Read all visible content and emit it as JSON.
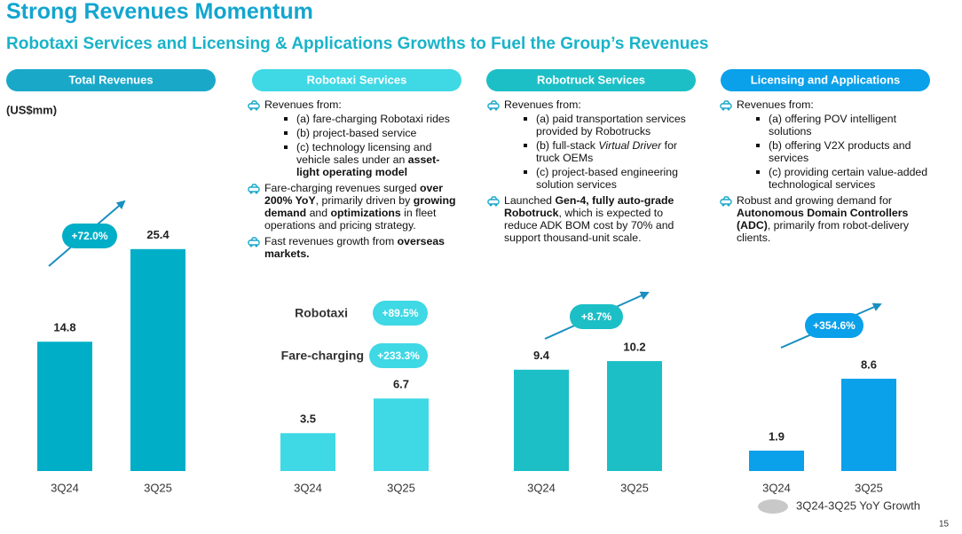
{
  "title": "Strong Revenues Momentum",
  "subtitle": "Robotaxi Services and Licensing & Applications Growths to Fuel the Group’s Revenues",
  "chart_data": [
    {
      "type": "bar",
      "title": "Total Revenues",
      "header_color": "#1aa8c9",
      "unit": "(US$mm)",
      "categories": [
        "3Q24",
        "3Q25"
      ],
      "values": [
        14.8,
        25.4
      ],
      "color": "#00aec7",
      "annotations": [
        {
          "text": "+72.0%"
        }
      ]
    },
    {
      "type": "bar",
      "title": "Robotaxi Services",
      "header_color": "#3fd8e5",
      "categories": [
        "3Q24",
        "3Q25"
      ],
      "values": [
        3.5,
        6.7
      ],
      "color": "#3fd8e5",
      "annotations": [
        {
          "label": "Robotaxi",
          "text": "+89.5%"
        },
        {
          "label": "Fare-charging",
          "text": "+233.3%"
        }
      ]
    },
    {
      "type": "bar",
      "title": "Robotruck Services",
      "header_color": "#1cbfc6",
      "categories": [
        "3Q24",
        "3Q25"
      ],
      "values": [
        9.4,
        10.2
      ],
      "color": "#1cbfc6",
      "annotations": [
        {
          "text": "+8.7%"
        }
      ]
    },
    {
      "type": "bar",
      "title": "Licensing and Applications",
      "header_color": "#0aa0ea",
      "categories": [
        "3Q24",
        "3Q25"
      ],
      "values": [
        1.9,
        8.6
      ],
      "color": "#0aa0ea",
      "annotations": [
        {
          "text": "+354.6%"
        }
      ]
    }
  ],
  "panels": [
    {
      "points": [
        {
          "runs": [
            {
              "text": "Revenues from:"
            }
          ],
          "sub": [
            {
              "runs": [
                {
                  "text": "(a) fare-charging Robotaxi rides"
                }
              ]
            },
            {
              "runs": [
                {
                  "text": "(b) project-based service"
                }
              ]
            },
            {
              "runs": [
                {
                  "text": "(c) technology licensing and vehicle sales under an "
                },
                {
                  "text": "asset-light operating model",
                  "style": "bold"
                }
              ]
            }
          ]
        },
        {
          "runs": [
            {
              "text": "Fare-charging revenues surged "
            },
            {
              "text": "over 200% YoY",
              "style": "bold"
            },
            {
              "text": ", primarily driven by "
            },
            {
              "text": "growing demand",
              "style": "bold"
            },
            {
              "text": " and "
            },
            {
              "text": "optimizations",
              "style": "bold"
            },
            {
              "text": " in fleet operations and pricing strategy."
            }
          ]
        },
        {
          "runs": [
            {
              "text": "Fast revenues growth from "
            },
            {
              "text": "overseas markets.",
              "style": "bold"
            }
          ]
        }
      ]
    },
    {
      "points": [
        {
          "runs": [
            {
              "text": "Revenues from:"
            }
          ],
          "sub": [
            {
              "runs": [
                {
                  "text": "(a) paid transportation services provided by Robotrucks"
                }
              ]
            },
            {
              "runs": [
                {
                  "text": "(b) full-stack "
                },
                {
                  "text": "Virtual Driver",
                  "style": "italic"
                },
                {
                  "text": " for truck OEMs"
                }
              ]
            },
            {
              "runs": [
                {
                  "text": "(c) project-based engineering solution services"
                }
              ]
            }
          ]
        },
        {
          "runs": [
            {
              "text": "Launched "
            },
            {
              "text": "Gen-4, fully auto-grade Robotruck",
              "style": "bold"
            },
            {
              "text": ", which is expected to reduce ADK BOM cost by 70% and support thousand-unit scale."
            }
          ]
        }
      ]
    },
    {
      "points": [
        {
          "runs": [
            {
              "text": "Revenues from:"
            }
          ],
          "sub": [
            {
              "runs": [
                {
                  "text": "(a) offering POV intelligent solutions"
                }
              ]
            },
            {
              "runs": [
                {
                  "text": "(b) offering V2X products and services"
                }
              ]
            },
            {
              "runs": [
                {
                  "text": "(c) providing certain value-added technological services"
                }
              ]
            }
          ]
        },
        {
          "runs": [
            {
              "text": "Robust and growing demand for "
            },
            {
              "text": "Autonomous Domain Controllers (ADC)",
              "style": "bold"
            },
            {
              "text": ", primarily from robot-delivery clients."
            }
          ]
        }
      ]
    }
  ],
  "legend": "3Q24-3Q25 YoY Growth",
  "page_number": "15"
}
